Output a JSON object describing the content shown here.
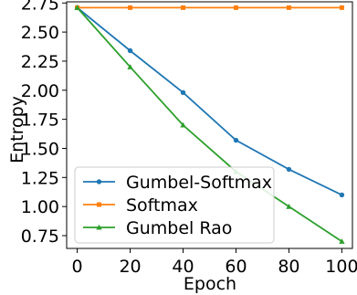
{
  "chart_data": {
    "type": "line",
    "title": "",
    "xlabel": "Epoch",
    "ylabel": "Entropy",
    "xlim": [
      -4,
      104
    ],
    "ylim": [
      0.64,
      2.76
    ],
    "x": [
      0,
      20,
      40,
      60,
      80,
      100
    ],
    "xticks": [
      0,
      20,
      40,
      60,
      80,
      100
    ],
    "yticks": [
      0.75,
      1.0,
      1.25,
      1.5,
      1.75,
      2.0,
      2.25,
      2.5,
      2.75
    ],
    "ytick_labels": [
      "0.75",
      "1.00",
      "1.25",
      "1.50",
      "1.75",
      "2.00",
      "2.25",
      "2.50",
      "2.75"
    ],
    "grid": false,
    "legend_position": "lower-left",
    "series": [
      {
        "name": "Gumbel-Softmax",
        "color": "#1f77b4",
        "marker": "circle",
        "values": [
          2.71,
          2.34,
          1.98,
          1.57,
          1.32,
          1.1
        ]
      },
      {
        "name": "Softmax",
        "color": "#ff7f0e",
        "marker": "square",
        "values": [
          2.71,
          2.71,
          2.71,
          2.71,
          2.71,
          2.71
        ]
      },
      {
        "name": "Gumbel Rao",
        "color": "#2ca02c",
        "marker": "triangle",
        "values": [
          2.71,
          2.2,
          1.7,
          1.3,
          1.0,
          0.7
        ]
      }
    ]
  }
}
